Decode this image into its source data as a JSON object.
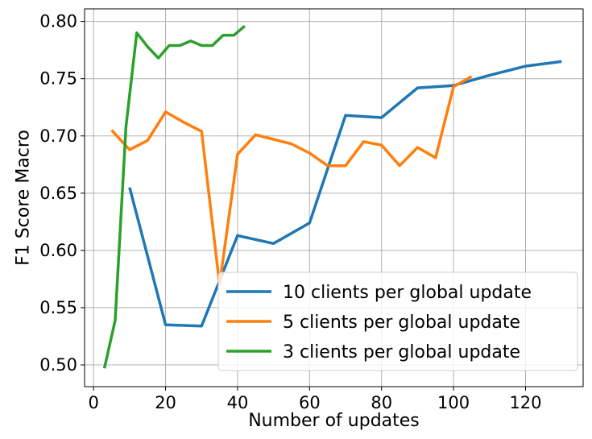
{
  "chart_data": {
    "type": "line",
    "xlabel": "Number of updates",
    "ylabel": "F1 Score Macro",
    "xlim": [
      -2.5,
      136
    ],
    "ylim": [
      0.481,
      0.811
    ],
    "xticks": [
      0,
      20,
      40,
      60,
      80,
      100,
      120
    ],
    "xtick_labels": [
      "0",
      "20",
      "40",
      "60",
      "80",
      "100",
      "120"
    ],
    "yticks": [
      0.5,
      0.55,
      0.6,
      0.65,
      0.7,
      0.75,
      0.8
    ],
    "ytick_labels": [
      "0.50",
      "0.55",
      "0.60",
      "0.65",
      "0.70",
      "0.75",
      "0.80"
    ],
    "grid": true,
    "legend_position": "bottom-right",
    "series": [
      {
        "name": "10 clients per global update",
        "color": "#1f77b4",
        "x": [
          10,
          20,
          30,
          40,
          50,
          60,
          70,
          80,
          90,
          100,
          110,
          120,
          130
        ],
        "y": [
          0.655,
          0.535,
          0.534,
          0.613,
          0.606,
          0.624,
          0.718,
          0.716,
          0.742,
          0.744,
          0.753,
          0.761,
          0.765
        ]
      },
      {
        "name": "5 clients per global update",
        "color": "#ff7f0e",
        "x": [
          5,
          10,
          15,
          20,
          25,
          30,
          35,
          40,
          45,
          50,
          55,
          60,
          65,
          70,
          75,
          80,
          85,
          90,
          95,
          100,
          105
        ],
        "y": [
          0.705,
          0.688,
          0.696,
          0.721,
          0.712,
          0.704,
          0.57,
          0.684,
          0.701,
          0.697,
          0.693,
          0.685,
          0.674,
          0.674,
          0.695,
          0.692,
          0.674,
          0.69,
          0.681,
          0.743,
          0.752
        ]
      },
      {
        "name": "3 clients per global update",
        "color": "#2ca02c",
        "x": [
          3,
          6,
          9,
          12,
          15,
          18,
          21,
          24,
          27,
          30,
          33,
          36,
          39,
          42
        ],
        "y": [
          0.497,
          0.539,
          0.708,
          0.79,
          0.778,
          0.768,
          0.779,
          0.779,
          0.783,
          0.779,
          0.779,
          0.788,
          0.788,
          0.796
        ]
      }
    ]
  }
}
